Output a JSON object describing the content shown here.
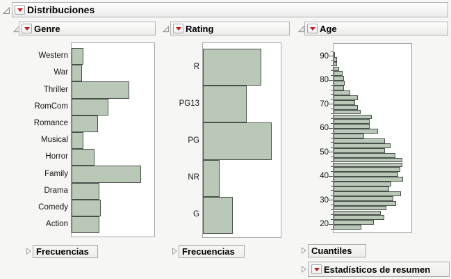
{
  "app": {
    "title": "Distribuciones"
  },
  "colors": {
    "background": "#f6f6f5",
    "bar_fill": "#b9c8b7",
    "bar_border": "#48504a",
    "accent_red": "#d01616",
    "panel_border": "#b1b1b1",
    "frame_border": "#a6a6a6"
  },
  "outline": {
    "root_title": "Distribuciones",
    "section_titles": [
      "Genre",
      "Rating",
      "Age"
    ],
    "nodes": [
      {
        "label": "Frecuencias",
        "has_menu": false
      },
      {
        "label": "Frecuencias",
        "has_menu": false
      },
      {
        "label": "Cuantiles",
        "has_menu": false
      },
      {
        "label": "Estadísticos de resumen",
        "has_menu": true
      }
    ]
  },
  "chart_data": [
    {
      "type": "bar",
      "orientation": "horizontal",
      "title": "Genre",
      "categories": [
        "Western",
        "War",
        "Thriller",
        "RomCom",
        "Romance",
        "Musical",
        "Horror",
        "Family",
        "Drama",
        "Comedy",
        "Action"
      ],
      "values": [
        0.14,
        0.12,
        0.69,
        0.44,
        0.31,
        0.14,
        0.27,
        0.83,
        0.33,
        0.35,
        0.33
      ],
      "value_note": "relative bar length as fraction of plot width; no numeric axis shown",
      "grid": false,
      "legend": false
    },
    {
      "type": "bar",
      "orientation": "horizontal",
      "title": "Rating",
      "categories": [
        "R",
        "PG13",
        "PG",
        "NR",
        "G"
      ],
      "values": [
        0.74,
        0.55,
        0.87,
        0.21,
        0.38
      ],
      "value_note": "relative bar length as fraction of plot width; no numeric axis shown",
      "grid": false,
      "legend": false
    },
    {
      "type": "histogram",
      "orientation": "horizontal",
      "title": "Age",
      "bin_width": 2,
      "bin_starts": [
        18,
        20,
        22,
        24,
        26,
        28,
        30,
        32,
        34,
        36,
        38,
        40,
        42,
        44,
        46,
        48,
        50,
        52,
        54,
        56,
        58,
        60,
        62,
        64,
        66,
        68,
        70,
        72,
        74,
        76,
        78,
        80,
        82,
        84,
        86,
        88,
        90
      ],
      "values": [
        0.35,
        0.51,
        0.64,
        0.6,
        0.67,
        0.79,
        0.75,
        0.85,
        0.7,
        0.73,
        0.88,
        0.82,
        0.84,
        0.87,
        0.87,
        0.78,
        0.65,
        0.72,
        0.65,
        0.39,
        0.56,
        0.46,
        0.46,
        0.48,
        0.34,
        0.31,
        0.27,
        0.31,
        0.21,
        0.13,
        0.14,
        0.13,
        0.11,
        0.07,
        0.04,
        0.04,
        0.02
      ],
      "value_note": "relative bar length as fraction of plot width; no numeric axis shown",
      "axis_ticks": [
        20,
        30,
        40,
        50,
        60,
        70,
        80,
        90
      ],
      "axis_range": [
        16,
        95
      ],
      "grid": false,
      "legend": false
    }
  ]
}
